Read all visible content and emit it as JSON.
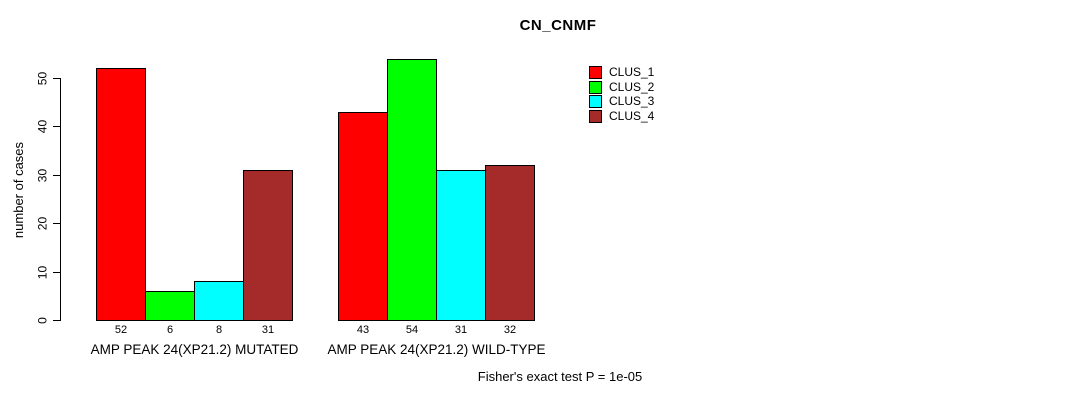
{
  "chart_data": {
    "type": "bar",
    "title": "CN_CNMF",
    "xlabel": "",
    "ylabel": "number of cases",
    "categories": [
      "AMP PEAK 24(XP21.2) MUTATED",
      "AMP PEAK 24(XP21.2) WILD-TYPE"
    ],
    "series": [
      {
        "name": "CLUS_1",
        "color": "#ff0000",
        "values": [
          52,
          43
        ]
      },
      {
        "name": "CLUS_2",
        "color": "#00ff00",
        "values": [
          6,
          54
        ]
      },
      {
        "name": "CLUS_3",
        "color": "#00ffff",
        "values": [
          8,
          31
        ]
      },
      {
        "name": "CLUS_4",
        "color": "#a52a2a",
        "values": [
          31,
          32
        ]
      }
    ],
    "yticks": [
      0,
      10,
      20,
      30,
      40,
      50
    ],
    "ylim": [
      0,
      54
    ],
    "bar_value_labels": [
      [
        "52",
        "6",
        "8",
        "31"
      ],
      [
        "43",
        "54",
        "31",
        "32"
      ]
    ],
    "legend_entries": [
      "CLUS_1",
      "CLUS_2",
      "CLUS_3",
      "CLUS_4"
    ],
    "legend_position": "top-right",
    "grid": false,
    "axis_color": "#000000",
    "annotation": "Fisher's exact test P = 1e-05"
  }
}
